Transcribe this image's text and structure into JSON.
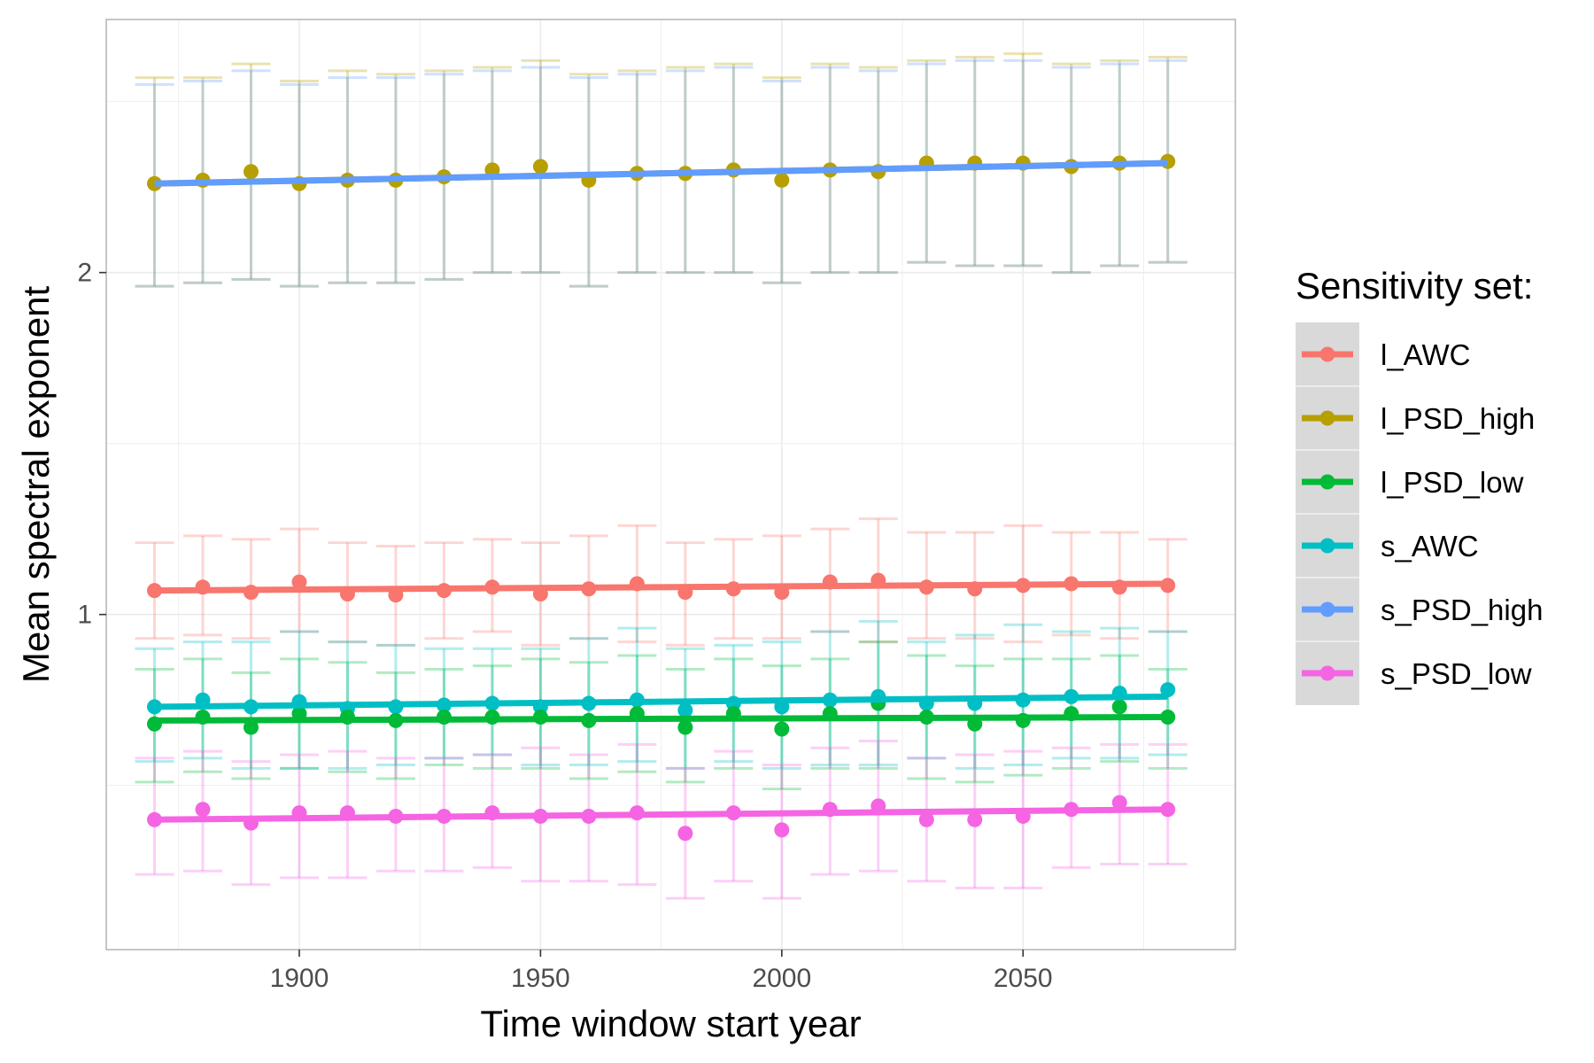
{
  "chart_data": {
    "type": "line",
    "xlabel": "Time window start year",
    "ylabel": "Mean spectral exponent",
    "xlim": [
      1860,
      2094
    ],
    "ylim": [
      0.02,
      2.74
    ],
    "xticks": [
      1900,
      1950,
      2000,
      2050
    ],
    "xtick_labels": [
      "1900",
      "1950",
      "2000",
      "2050"
    ],
    "yticks": [
      1,
      2
    ],
    "ytick_labels": [
      "1",
      "2"
    ],
    "grid": true,
    "legend": {
      "title": "Sensitivity set:",
      "placement": "right",
      "entries": [
        "l_AWC",
        "l_PSD_high",
        "l_PSD_low",
        "s_AWC",
        "s_PSD_high",
        "s_PSD_low"
      ]
    },
    "x": [
      1870,
      1880,
      1890,
      1900,
      1910,
      1920,
      1930,
      1940,
      1950,
      1960,
      1970,
      1980,
      1990,
      2000,
      2010,
      2020,
      2030,
      2040,
      2050,
      2060,
      2070,
      2080
    ],
    "series": [
      {
        "name": "l_AWC",
        "color": "#F8766D",
        "values": [
          1.07,
          1.08,
          1.065,
          1.095,
          1.06,
          1.057,
          1.07,
          1.08,
          1.06,
          1.075,
          1.09,
          1.065,
          1.075,
          1.065,
          1.095,
          1.1,
          1.08,
          1.075,
          1.085,
          1.09,
          1.08,
          1.085
        ],
        "err_low": [
          0.93,
          0.94,
          0.93,
          0.95,
          0.92,
          0.91,
          0.93,
          0.95,
          0.91,
          0.93,
          0.92,
          0.91,
          0.93,
          0.93,
          0.95,
          0.92,
          0.93,
          0.93,
          0.92,
          0.94,
          0.93,
          0.95
        ],
        "err_high": [
          1.21,
          1.23,
          1.22,
          1.25,
          1.21,
          1.2,
          1.21,
          1.22,
          1.21,
          1.23,
          1.26,
          1.21,
          1.22,
          1.23,
          1.25,
          1.28,
          1.24,
          1.24,
          1.26,
          1.24,
          1.24,
          1.22
        ],
        "fit": [
          1.07,
          1.09
        ]
      },
      {
        "name": "l_PSD_high",
        "color": "#B79F00",
        "values": [
          2.26,
          2.27,
          2.295,
          2.26,
          2.27,
          2.27,
          2.28,
          2.3,
          2.31,
          2.27,
          2.29,
          2.29,
          2.3,
          2.27,
          2.3,
          2.295,
          2.32,
          2.32,
          2.32,
          2.31,
          2.32,
          2.325
        ],
        "err_low": [
          1.96,
          1.97,
          1.98,
          1.96,
          1.97,
          1.97,
          1.98,
          2.0,
          2.0,
          1.96,
          2.0,
          2.0,
          2.0,
          1.97,
          2.0,
          2.0,
          2.03,
          2.02,
          2.02,
          2.0,
          2.02,
          2.03
        ],
        "err_high": [
          2.57,
          2.57,
          2.61,
          2.56,
          2.59,
          2.58,
          2.59,
          2.6,
          2.62,
          2.58,
          2.59,
          2.6,
          2.61,
          2.57,
          2.61,
          2.6,
          2.62,
          2.63,
          2.64,
          2.61,
          2.62,
          2.63
        ],
        "fit": [
          2.26,
          2.32
        ]
      },
      {
        "name": "l_PSD_low",
        "color": "#00BA38",
        "values": [
          0.68,
          0.7,
          0.67,
          0.71,
          0.7,
          0.69,
          0.7,
          0.7,
          0.7,
          0.69,
          0.71,
          0.67,
          0.71,
          0.665,
          0.71,
          0.74,
          0.7,
          0.68,
          0.69,
          0.71,
          0.73,
          0.7
        ],
        "err_low": [
          0.51,
          0.54,
          0.52,
          0.55,
          0.54,
          0.52,
          0.56,
          0.55,
          0.55,
          0.52,
          0.54,
          0.51,
          0.55,
          0.49,
          0.55,
          0.55,
          0.52,
          0.51,
          0.53,
          0.55,
          0.57,
          0.55
        ],
        "err_high": [
          0.84,
          0.87,
          0.83,
          0.87,
          0.86,
          0.83,
          0.84,
          0.85,
          0.87,
          0.86,
          0.88,
          0.84,
          0.87,
          0.85,
          0.87,
          0.92,
          0.88,
          0.85,
          0.87,
          0.87,
          0.88,
          0.84
        ],
        "fit": [
          0.69,
          0.7
        ]
      },
      {
        "name": "s_AWC",
        "color": "#00BFC4",
        "values": [
          0.73,
          0.75,
          0.73,
          0.745,
          0.725,
          0.73,
          0.735,
          0.74,
          0.73,
          0.74,
          0.75,
          0.72,
          0.74,
          0.73,
          0.75,
          0.76,
          0.74,
          0.74,
          0.75,
          0.76,
          0.77,
          0.78
        ],
        "err_low": [
          0.57,
          0.58,
          0.55,
          0.55,
          0.55,
          0.56,
          0.58,
          0.59,
          0.56,
          0.56,
          0.57,
          0.55,
          0.57,
          0.55,
          0.56,
          0.56,
          0.58,
          0.55,
          0.56,
          0.58,
          0.58,
          0.59
        ],
        "err_high": [
          0.9,
          0.92,
          0.92,
          0.95,
          0.92,
          0.91,
          0.9,
          0.9,
          0.9,
          0.93,
          0.96,
          0.9,
          0.91,
          0.92,
          0.95,
          0.98,
          0.92,
          0.94,
          0.97,
          0.95,
          0.96,
          0.95
        ],
        "fit": [
          0.73,
          0.76
        ]
      },
      {
        "name": "s_PSD_high",
        "color": "#619CFF",
        "values": [
          2.26,
          2.265,
          2.27,
          2.26,
          2.27,
          2.265,
          2.275,
          2.28,
          2.285,
          2.27,
          2.285,
          2.29,
          2.295,
          2.275,
          2.29,
          2.29,
          2.31,
          2.31,
          2.32,
          2.305,
          2.32,
          2.325
        ],
        "err_low": [
          1.96,
          1.97,
          1.98,
          1.96,
          1.97,
          1.97,
          1.98,
          2.0,
          2.0,
          1.96,
          2.0,
          2.0,
          2.0,
          1.97,
          2.0,
          2.0,
          2.03,
          2.02,
          2.02,
          2.0,
          2.02,
          2.03
        ],
        "err_high": [
          2.55,
          2.56,
          2.59,
          2.55,
          2.57,
          2.57,
          2.58,
          2.59,
          2.6,
          2.57,
          2.58,
          2.59,
          2.6,
          2.56,
          2.6,
          2.59,
          2.61,
          2.62,
          2.62,
          2.6,
          2.61,
          2.62
        ],
        "fit": [
          2.26,
          2.32
        ]
      },
      {
        "name": "s_PSD_low",
        "color": "#F564E3",
        "values": [
          0.4,
          0.43,
          0.39,
          0.42,
          0.42,
          0.41,
          0.41,
          0.42,
          0.41,
          0.41,
          0.42,
          0.36,
          0.42,
          0.37,
          0.43,
          0.44,
          0.4,
          0.4,
          0.41,
          0.43,
          0.45,
          0.43
        ],
        "err_low": [
          0.24,
          0.25,
          0.21,
          0.23,
          0.23,
          0.25,
          0.25,
          0.26,
          0.22,
          0.22,
          0.21,
          0.17,
          0.22,
          0.17,
          0.24,
          0.25,
          0.22,
          0.2,
          0.2,
          0.26,
          0.27,
          0.27
        ],
        "err_high": [
          0.58,
          0.6,
          0.57,
          0.59,
          0.6,
          0.58,
          0.58,
          0.59,
          0.61,
          0.59,
          0.62,
          0.55,
          0.6,
          0.56,
          0.61,
          0.63,
          0.58,
          0.59,
          0.6,
          0.61,
          0.62,
          0.62
        ],
        "fit": [
          0.4,
          0.43
        ]
      }
    ]
  }
}
